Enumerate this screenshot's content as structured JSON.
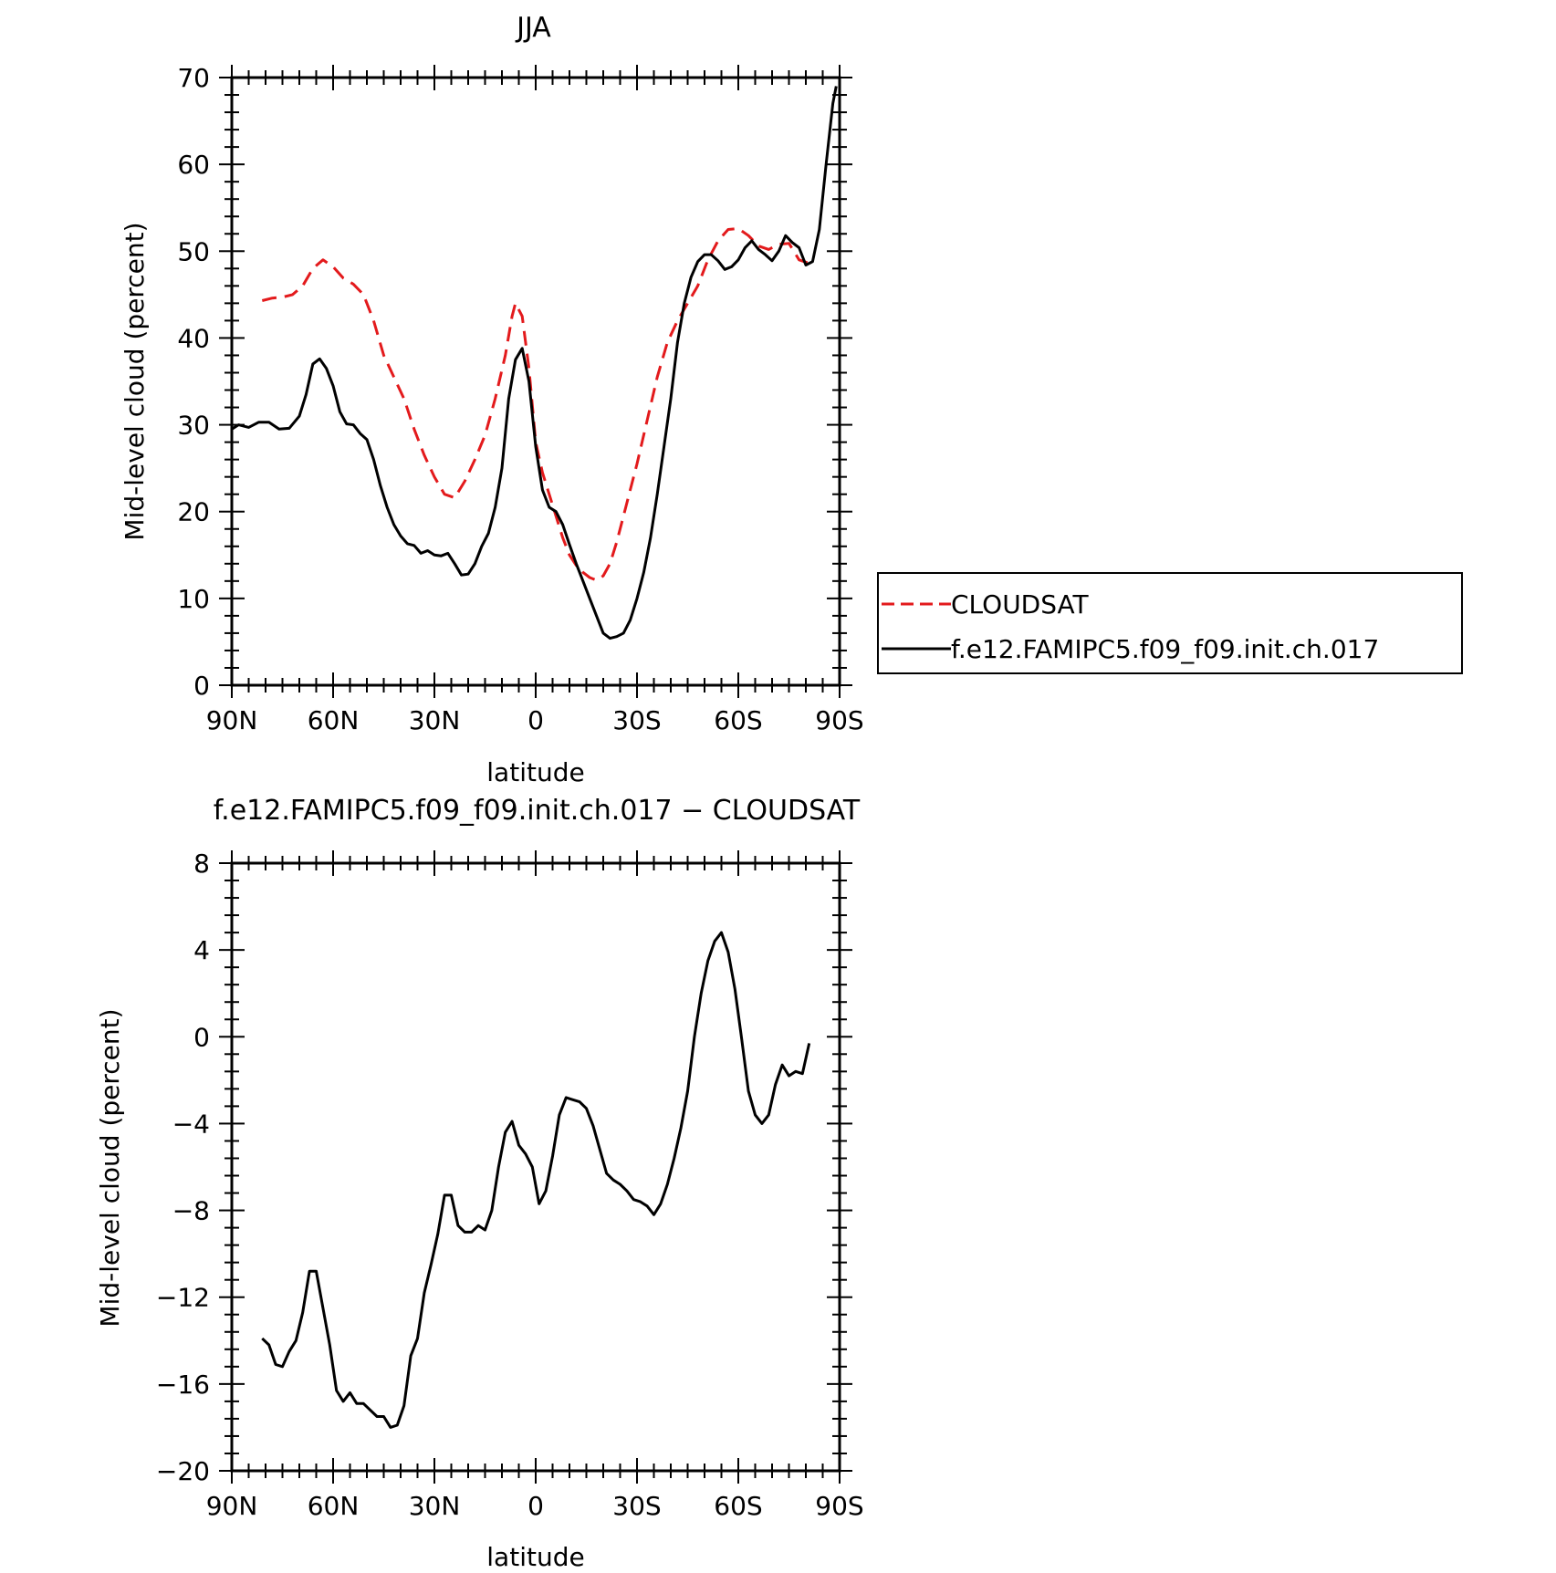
{
  "chart_data": [
    {
      "type": "line",
      "title": "JJA",
      "xlabel": "latitude",
      "ylabel": "Mid-level cloud (percent)",
      "xlim": [
        -90,
        90
      ],
      "ylim": [
        0,
        70
      ],
      "xticks": [
        -90,
        -60,
        -30,
        0,
        30,
        60,
        90
      ],
      "xtick_labels": [
        "90N",
        "60N",
        "30N",
        "0",
        "30S",
        "60S",
        "90S"
      ],
      "yticks": [
        0,
        10,
        20,
        30,
        40,
        50,
        60,
        70
      ],
      "ytick_labels": [
        "0",
        "10",
        "20",
        "30",
        "40",
        "50",
        "60",
        "70"
      ],
      "grid": false,
      "legend_position": "right",
      "series": [
        {
          "name": "CLOUDSAT",
          "color": "#e31a1c",
          "dash": "dashed",
          "x": [
            -81,
            -78,
            -75,
            -72,
            -69,
            -66,
            -63,
            -60,
            -57,
            -54,
            -51,
            -48,
            -45,
            -42,
            -39,
            -36,
            -33,
            -30,
            -27,
            -24,
            -21,
            -18,
            -15,
            -12,
            -9,
            -7,
            -6,
            -4,
            -2,
            0,
            2,
            4,
            6,
            8,
            10,
            12,
            14,
            16,
            18,
            20,
            22,
            24,
            26,
            28,
            30,
            33,
            36,
            39,
            42,
            45,
            48,
            51,
            54,
            57,
            60,
            63,
            66,
            69,
            72,
            75,
            78,
            81
          ],
          "values": [
            44.3,
            44.6,
            44.7,
            45.0,
            46.0,
            48.0,
            49.0,
            48.2,
            46.9,
            46.2,
            45.0,
            42.0,
            38.0,
            35.5,
            33.0,
            29.5,
            26.5,
            24.0,
            22.0,
            21.6,
            23.5,
            26.0,
            28.8,
            33.0,
            38.0,
            42.5,
            44.0,
            42.5,
            36.5,
            28.0,
            24.5,
            22.0,
            19.5,
            17.0,
            15.0,
            13.8,
            13.0,
            12.4,
            12.1,
            12.6,
            14.0,
            16.5,
            19.5,
            22.5,
            25.5,
            30.5,
            35.5,
            39.5,
            42.0,
            44.0,
            46.0,
            49.0,
            51.2,
            52.5,
            52.6,
            51.8,
            50.6,
            50.2,
            50.8,
            50.9,
            49.0,
            48.6
          ]
        },
        {
          "name": "f.e12.FAMIPC5.f09_f09.init.ch.017",
          "color": "#000000",
          "dash": "solid",
          "x": [
            -90,
            -88,
            -85,
            -82,
            -79,
            -76,
            -73,
            -70,
            -68,
            -66,
            -64,
            -62,
            -60,
            -58,
            -56,
            -54,
            -52,
            -50,
            -48,
            -46,
            -44,
            -42,
            -40,
            -38,
            -36,
            -34,
            -32,
            -30,
            -28,
            -26,
            -24,
            -22,
            -20,
            -18,
            -16,
            -14,
            -12,
            -10,
            -8,
            -6,
            -4,
            -2,
            0,
            2,
            4,
            6,
            8,
            10,
            12,
            14,
            16,
            18,
            20,
            22,
            24,
            26,
            28,
            30,
            32,
            34,
            36,
            38,
            40,
            42,
            44,
            46,
            48,
            50,
            52,
            54,
            56,
            58,
            60,
            62,
            64,
            66,
            68,
            70,
            72,
            74,
            76,
            78,
            80,
            82,
            84,
            86,
            88,
            89
          ],
          "values": [
            29.5,
            30.0,
            29.7,
            30.3,
            30.3,
            29.5,
            29.6,
            31.0,
            33.5,
            37.0,
            37.6,
            36.5,
            34.5,
            31.5,
            30.1,
            30.0,
            29.0,
            28.3,
            26.0,
            23.0,
            20.5,
            18.5,
            17.2,
            16.3,
            16.1,
            15.2,
            15.5,
            15.0,
            14.9,
            15.2,
            14.0,
            12.7,
            12.8,
            14.0,
            16.0,
            17.5,
            20.5,
            25.0,
            33.0,
            37.5,
            38.8,
            35.0,
            27.5,
            22.5,
            20.5,
            20.0,
            18.5,
            16.2,
            14.0,
            12.0,
            10.0,
            8.0,
            6.0,
            5.4,
            5.6,
            6.0,
            7.5,
            10.0,
            13.0,
            17.0,
            22.0,
            27.5,
            33.0,
            39.5,
            44.0,
            47.0,
            48.8,
            49.6,
            49.6,
            48.9,
            47.9,
            48.2,
            49.0,
            50.4,
            51.2,
            50.2,
            49.6,
            48.9,
            50.0,
            51.8,
            51.0,
            50.4,
            48.4,
            48.8,
            52.5,
            60.0,
            67.0,
            69.0
          ]
        }
      ]
    },
    {
      "type": "line",
      "title": "f.e12.FAMIPC5.f09_f09.init.ch.017 − CLOUDSAT",
      "xlabel": "latitude",
      "ylabel": "Mid-level cloud (percent)",
      "xlim": [
        -90,
        90
      ],
      "ylim": [
        -20,
        8
      ],
      "xticks": [
        -90,
        -60,
        -30,
        0,
        30,
        60,
        90
      ],
      "xtick_labels": [
        "90N",
        "60N",
        "30N",
        "0",
        "30S",
        "60S",
        "90S"
      ],
      "yticks": [
        -20,
        -16,
        -12,
        -8,
        -4,
        0,
        4,
        8
      ],
      "ytick_labels": [
        "−20",
        "−16",
        "−12",
        "−8",
        "−4",
        "0",
        "4",
        "8"
      ],
      "grid": false,
      "series": [
        {
          "color": "#000000",
          "dash": "solid",
          "x": [
            -81,
            -79,
            -77,
            -75,
            -73,
            -71,
            -69,
            -67,
            -65,
            -63,
            -61,
            -59,
            -57,
            -55,
            -53,
            -51,
            -49,
            -47,
            -45,
            -43,
            -41,
            -39,
            -37,
            -35,
            -33,
            -31,
            -29,
            -27,
            -25,
            -23,
            -21,
            -19,
            -17,
            -15,
            -13,
            -11,
            -9,
            -7,
            -5,
            -3,
            -1,
            1,
            3,
            5,
            7,
            9,
            11,
            13,
            15,
            17,
            19,
            21,
            23,
            25,
            27,
            29,
            31,
            33,
            35,
            37,
            39,
            41,
            43,
            45,
            47,
            49,
            51,
            53,
            55,
            57,
            59,
            61,
            63,
            65,
            67,
            69,
            71,
            73,
            75,
            77,
            79,
            81
          ],
          "values": [
            -13.9,
            -14.2,
            -15.1,
            -15.2,
            -14.5,
            -14.0,
            -12.7,
            -10.8,
            -10.8,
            -12.5,
            -14.2,
            -16.3,
            -16.8,
            -16.4,
            -16.9,
            -16.9,
            -17.2,
            -17.5,
            -17.5,
            -18.0,
            -17.9,
            -17.0,
            -14.7,
            -13.9,
            -11.8,
            -10.5,
            -9.1,
            -7.3,
            -7.3,
            -8.7,
            -9.0,
            -9.0,
            -8.7,
            -8.9,
            -8.0,
            -6.0,
            -4.4,
            -3.9,
            -5.0,
            -5.4,
            -6.0,
            -7.7,
            -7.1,
            -5.5,
            -3.6,
            -2.8,
            -2.9,
            -3.0,
            -3.3,
            -4.1,
            -5.2,
            -6.3,
            -6.6,
            -6.8,
            -7.1,
            -7.5,
            -7.6,
            -7.8,
            -8.2,
            -7.7,
            -6.8,
            -5.6,
            -4.2,
            -2.5,
            0.0,
            2.0,
            3.5,
            4.4,
            4.8,
            3.9,
            2.2,
            -0.1,
            -2.5,
            -3.6,
            -4.0,
            -3.6,
            -2.2,
            -1.3,
            -1.8,
            -1.6,
            -1.7,
            -0.3
          ]
        }
      ]
    }
  ]
}
